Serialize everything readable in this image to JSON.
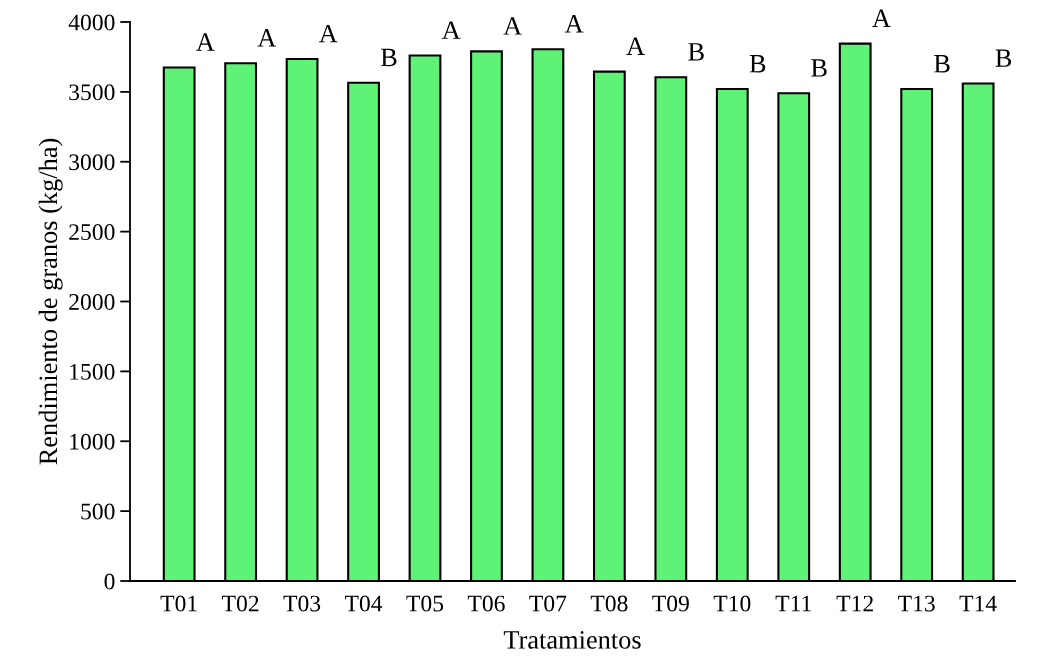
{
  "chart_data": {
    "type": "bar",
    "xlabel": "Tratamientos",
    "ylabel": "Rendimiento de granos (kg/ha)",
    "categories": [
      "T01",
      "T02",
      "T03",
      "T04",
      "T05",
      "T06",
      "T07",
      "T08",
      "T09",
      "T10",
      "T11",
      "T12",
      "T13",
      "T14"
    ],
    "values": [
      3675,
      3705,
      3735,
      3565,
      3760,
      3790,
      3805,
      3645,
      3605,
      3520,
      3490,
      3845,
      3520,
      3560
    ],
    "color": "#5ef276",
    "ylim": [
      0,
      4000
    ],
    "yticks": [
      0,
      500,
      1000,
      1500,
      2000,
      2500,
      3000,
      3500,
      4000
    ],
    "grid": false,
    "legend": false,
    "annotations": [
      {
        "text": "A",
        "x": "T01",
        "y": 3675
      },
      {
        "text": "A",
        "x": "T02",
        "y": 3705
      },
      {
        "text": "A",
        "x": "T03",
        "y": 3735
      },
      {
        "text": "B",
        "x": "T04",
        "y": 3565
      },
      {
        "text": "A",
        "x": "T05",
        "y": 3760
      },
      {
        "text": "A",
        "x": "T06",
        "y": 3790
      },
      {
        "text": "A",
        "x": "T07",
        "y": 3805
      },
      {
        "text": "A",
        "x": "T08",
        "y": 3645
      },
      {
        "text": "B",
        "x": "T09",
        "y": 3605
      },
      {
        "text": "B",
        "x": "T10",
        "y": 3520
      },
      {
        "text": "B",
        "x": "T11",
        "y": 3490
      },
      {
        "text": "A",
        "x": "T12",
        "y": 3845
      },
      {
        "text": "B",
        "x": "T13",
        "y": 3520
      },
      {
        "text": "B",
        "x": "T14",
        "y": 3560
      }
    ]
  }
}
